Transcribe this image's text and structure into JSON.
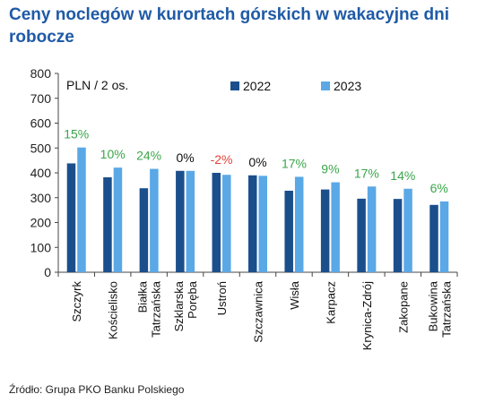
{
  "title": "Ceny noclegów w kurortach górskich w wakacyjne dni robocze",
  "source": "Źródło: Grupa PKO Banku Polskiego",
  "colors": {
    "s2022": "#1a4f8c",
    "s2023": "#5aa8e6",
    "positive": "#3aa64a",
    "negative": "#e0443a",
    "neutral": "#111111",
    "title": "#1f5aa6"
  },
  "chart_data": {
    "type": "bar",
    "unit_label": "PLN / 2 os.",
    "ylim": [
      0,
      800
    ],
    "yticks": [
      0,
      100,
      200,
      300,
      400,
      500,
      600,
      700,
      800
    ],
    "grid": false,
    "legend_position": "top",
    "categories": [
      [
        "Szczyrk"
      ],
      [
        "Kościelisko"
      ],
      [
        "Białka",
        "Tatrzańska"
      ],
      [
        "Szklarska",
        "Poręba"
      ],
      [
        "Ustroń"
      ],
      [
        "Szczawnica"
      ],
      [
        "Wisła"
      ],
      [
        "Karpacz"
      ],
      [
        "Krynica-Zdrój"
      ],
      [
        "Zakopane"
      ],
      [
        "Bukowina",
        "Tatrzańska"
      ]
    ],
    "series": [
      {
        "name": "2022",
        "values": [
          438,
          382,
          338,
          408,
          400,
          390,
          328,
          333,
          296,
          295,
          271
        ]
      },
      {
        "name": "2023",
        "values": [
          502,
          421,
          416,
          408,
          392,
          388,
          384,
          362,
          345,
          336,
          285
        ]
      }
    ],
    "change_labels": [
      "15%",
      "10%",
      "24%",
      "0%",
      "-2%",
      "0%",
      "17%",
      "9%",
      "17%",
      "14%",
      "6%"
    ]
  }
}
